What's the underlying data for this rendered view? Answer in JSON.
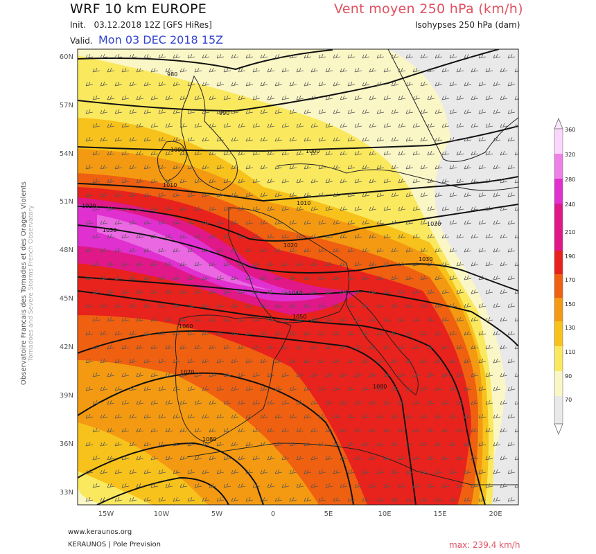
{
  "header": {
    "model_title": "WRF 10 km EUROPE",
    "init_text": "Init.   03.12.2018 12Z [GFS HiRes]",
    "valid_label": "Valid.",
    "valid_value": "Mon 03 DEC 2018 15Z",
    "product_title": "Vent moyen 250 hPa (km/h)",
    "isohypses_label": "Isohypses 250 hPa (dam)"
  },
  "side_credit": {
    "french": "Observatoire Francais des Tornades et des Orages Violents",
    "english": "Tornadoes and Severe Storms French Observatory"
  },
  "map": {
    "lat_labels": [
      "60N",
      "57N",
      "54N",
      "51N",
      "48N",
      "45N",
      "42N",
      "39N",
      "36N",
      "33N"
    ],
    "lon_labels": [
      "15W",
      "10W",
      "5W",
      "0",
      "5E",
      "10E",
      "15E",
      "20E"
    ],
    "contour_labels": [
      "980",
      "990",
      "1000",
      "1000",
      "1010",
      "1010",
      "1020",
      "1020",
      "1020",
      "1030",
      "1030",
      "1040",
      "1050",
      "1060",
      "1070",
      "1080",
      "1080"
    ],
    "colors": {
      "c70": "#e9e9e9",
      "c90": "#faf6c6",
      "c110": "#fae95e",
      "c130": "#f7c21c",
      "c150": "#f49a12",
      "c170": "#ef6010",
      "c190": "#e8221c",
      "c210": "#e01888",
      "c240": "#e030d0",
      "c280": "#ee80e8",
      "c360": "#fbd6fb"
    }
  },
  "legend": {
    "ticks": [
      "360",
      "320",
      "280",
      "240",
      "210",
      "190",
      "170",
      "150",
      "130",
      "110",
      "90",
      "70"
    ]
  },
  "footer": {
    "website": "www.keraunos.org",
    "brand": "KERAUNOS | Pole Prevision",
    "max_value": "max: 239.4 km/h"
  }
}
